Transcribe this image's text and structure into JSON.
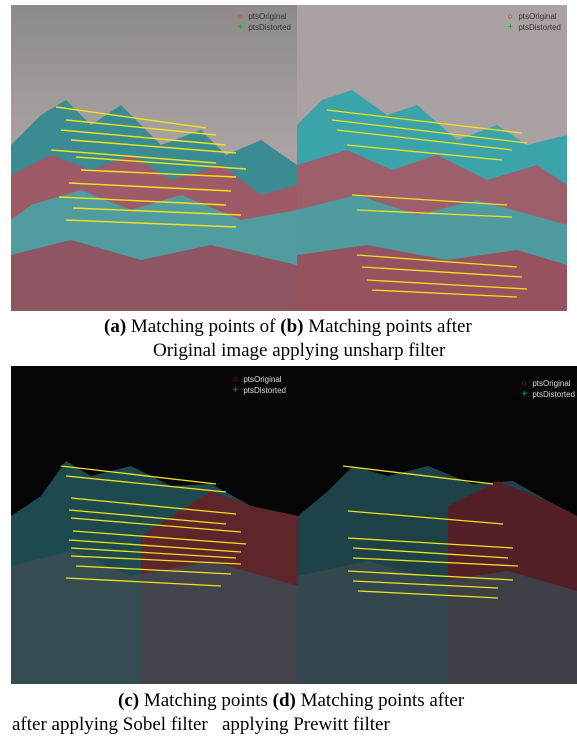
{
  "figure": {
    "panels": [
      {
        "id": "a",
        "legend": [
          "ptsOriginal",
          "ptsDistorted"
        ],
        "caption_tag": "(a)"
      },
      {
        "id": "b",
        "legend": [
          "ptsOriginal",
          "ptsDistorted"
        ],
        "caption_tag": "(b)"
      },
      {
        "id": "c",
        "legend": [
          "ptsOriginal",
          "ptsDistorted"
        ],
        "caption_tag": "(c)"
      },
      {
        "id": "d",
        "legend": [
          "ptsOriginal",
          "ptsDistorted"
        ],
        "caption_tag": "(d)"
      }
    ],
    "captions": {
      "row1_line1": {
        "a_tag": "(a)",
        "a_text": " Matching points of ",
        "b_tag": "(b)",
        "b_text": " Matching points after"
      },
      "row1_line2": "Original image applying unsharp filter",
      "row2_line1": {
        "c_tag": "(c)",
        "c_text": " Matching points ",
        "d_tag": "(d)",
        "d_text": " Matching points after"
      },
      "row2_line2": "after applying Sobel filter   applying Prewitt filter"
    },
    "colors": {
      "match_line": "#f0e020",
      "original_marker": "#e01010",
      "distorted_marker": "#10c010",
      "mountain_cyan": "#3fc8c8",
      "mountain_red": "#c83a4a",
      "sky": "#b8b0b0",
      "dark_bg": "#050505"
    }
  }
}
